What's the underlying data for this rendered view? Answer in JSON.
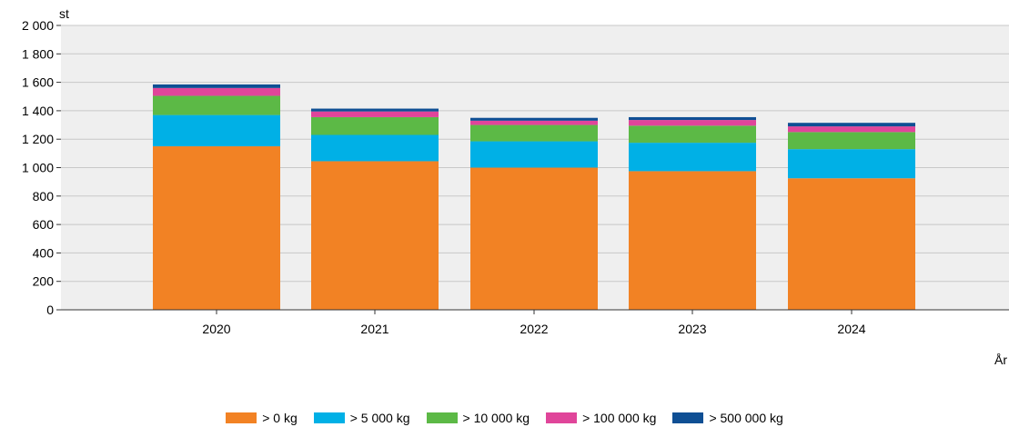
{
  "chart_data": {
    "type": "bar",
    "stacked": true,
    "title": "",
    "ylabel": "st",
    "xlabel": "År",
    "ylim": [
      0,
      2000
    ],
    "yticks": [
      0,
      200,
      400,
      600,
      800,
      1000,
      1200,
      1400,
      1600,
      1800,
      2000
    ],
    "ytick_labels": [
      "0",
      "200",
      "400",
      "600",
      "800",
      "1 000",
      "1 200",
      "1 400",
      "1 600",
      "1 800",
      "2 000"
    ],
    "categories": [
      "2020",
      "2021",
      "2022",
      "2023",
      "2024"
    ],
    "grid": true,
    "legend_position": "bottom",
    "series": [
      {
        "name": "> 0 kg",
        "color": "#f28224",
        "values": [
          1150,
          1045,
          1000,
          975,
          925
        ]
      },
      {
        "name": "> 5 000 kg",
        "color": "#00b0e6",
        "values": [
          220,
          185,
          185,
          200,
          205
        ]
      },
      {
        "name": "> 10 000 kg",
        "color": "#5cb946",
        "values": [
          135,
          125,
          115,
          120,
          120
        ]
      },
      {
        "name": "> 100 000 kg",
        "color": "#e0459a",
        "values": [
          55,
          40,
          30,
          40,
          40
        ]
      },
      {
        "name": "> 500 000 kg",
        "color": "#0f4f94",
        "values": [
          25,
          20,
          20,
          20,
          25
        ]
      }
    ]
  },
  "colors": {
    "plot_background": "#efefef",
    "gridline": "#c8c8c8",
    "axis": "#333333"
  }
}
